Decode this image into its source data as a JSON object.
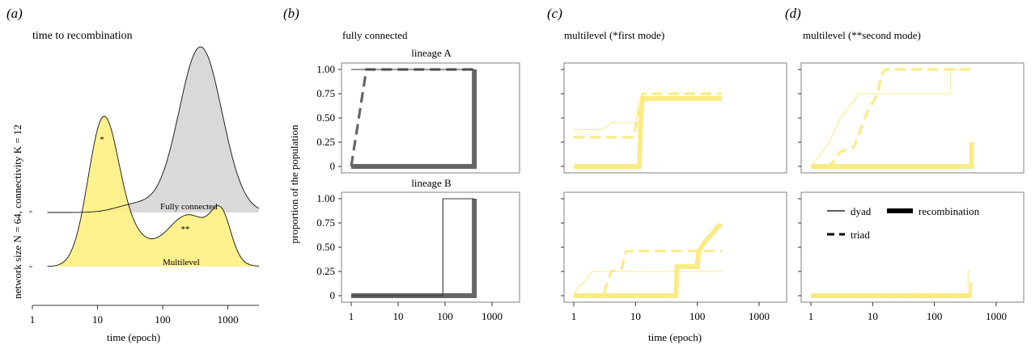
{
  "panels": {
    "a": {
      "letter": "(a)",
      "title": "time to recombination",
      "ylabel": "network size N = 64, connectivity K = 12",
      "xlabel": "time (epoch)",
      "xticks": [
        "1",
        "10",
        "100",
        "1000"
      ],
      "annotations": {
        "first_mode": "*",
        "second_mode": "**",
        "fully_connected": "Fully connected",
        "multilevel": "Multilevel"
      }
    },
    "b": {
      "letter": "(b)",
      "title": "fully connected",
      "row1_label": "lineage A",
      "row2_label": "lineage B"
    },
    "c": {
      "letter": "(c)",
      "title": "multilevel (*first mode)"
    },
    "d": {
      "letter": "(d)",
      "title": "multilevel (**second mode)"
    }
  },
  "shared": {
    "ylabel": "proportion of the population",
    "xlabel": "time (epoch)",
    "yticks": [
      "0",
      "0.25",
      "0.50",
      "0.75",
      "1.00"
    ],
    "xticks": [
      "1",
      "10",
      "100",
      "1000"
    ]
  },
  "legend": {
    "dyad": "dyad",
    "triad": "triad",
    "recombination": "recombination"
  },
  "colors": {
    "fully_connected": "#666666",
    "multilevel": "#fbe97a",
    "density_gray": "#d9d9d9",
    "density_yellow": "#fff07a"
  },
  "chart_data": [
    {
      "panel": "a",
      "type": "area",
      "x_scale": "log",
      "xlim": [
        1,
        3000
      ],
      "series": [
        {
          "name": "Fully connected",
          "mode_epoch": 380,
          "note": "gray density, single mode"
        },
        {
          "name": "Multilevel",
          "first_mode_epoch": 12,
          "second_mode_epoch": 250,
          "note": "yellow density, bimodal"
        }
      ]
    },
    {
      "panel": "b",
      "type": "line",
      "x_scale": "log",
      "xlim": [
        1,
        1000
      ],
      "ylim": [
        0,
        1
      ],
      "rows": [
        {
          "name": "lineage A",
          "dyad": [
            [
              1,
              1.0
            ],
            [
              420,
              1.0
            ]
          ],
          "triad": [
            [
              1,
              0
            ],
            [
              2.1,
              1.0
            ],
            [
              420,
              1.0
            ]
          ],
          "recombination": [
            [
              1,
              0
            ],
            [
              420,
              0
            ],
            [
              420,
              1.0
            ]
          ]
        },
        {
          "name": "lineage B",
          "dyad": [
            [
              1,
              0
            ],
            [
              90,
              0
            ],
            [
              90,
              1.0
            ],
            [
              420,
              1.0
            ]
          ],
          "triad": [
            [
              1,
              0
            ],
            [
              420,
              0
            ],
            [
              420,
              1.0
            ]
          ],
          "recombination": [
            [
              1,
              0
            ],
            [
              420,
              0
            ],
            [
              420,
              1.0
            ]
          ]
        }
      ]
    },
    {
      "panel": "c",
      "type": "line",
      "x_scale": "log",
      "xlim": [
        1,
        1000
      ],
      "ylim": [
        0,
        1
      ],
      "rows": [
        {
          "dyad": [
            [
              1,
              0.38
            ],
            [
              3,
              0.38
            ],
            [
              4,
              0.45
            ],
            [
              10,
              0.45
            ],
            [
              11,
              0.65
            ],
            [
              13,
              0.72
            ],
            [
              250,
              0.72
            ]
          ],
          "triad": [
            [
              1,
              0.3
            ],
            [
              7,
              0.3
            ],
            [
              9,
              0.3
            ],
            [
              11,
              0.5
            ],
            [
              13,
              0.75
            ],
            [
              250,
              0.75
            ]
          ],
          "recombination": [
            [
              1,
              0
            ],
            [
              11.5,
              0
            ],
            [
              12,
              0.4
            ],
            [
              13,
              0.7
            ],
            [
              20,
              0.7
            ],
            [
              250,
              0.7
            ]
          ]
        },
        {
          "dyad": [
            [
              1,
              0.02
            ],
            [
              2,
              0.25
            ],
            [
              250,
              0.25
            ]
          ],
          "triad": [
            [
              1,
              0
            ],
            [
              3,
              0
            ],
            [
              4,
              0.25
            ],
            [
              6,
              0.28
            ],
            [
              7,
              0.46
            ],
            [
              250,
              0.46
            ]
          ],
          "recombination": [
            [
              1,
              0
            ],
            [
              45,
              0
            ],
            [
              47,
              0.3
            ],
            [
              100,
              0.3
            ],
            [
              105,
              0.45
            ],
            [
              130,
              0.55
            ],
            [
              180,
              0.65
            ],
            [
              220,
              0.72
            ],
            [
              250,
              0.72
            ]
          ]
        }
      ]
    },
    {
      "panel": "d",
      "type": "line",
      "x_scale": "log",
      "xlim": [
        1,
        1000
      ],
      "ylim": [
        0,
        1
      ],
      "rows": [
        {
          "dyad": [
            [
              1,
              0
            ],
            [
              2,
              0.25
            ],
            [
              3,
              0.5
            ],
            [
              4,
              0.6
            ],
            [
              6,
              0.75
            ],
            [
              180,
              0.75
            ],
            [
              180,
              1.0
            ],
            [
              380,
              1.0
            ]
          ],
          "triad": [
            [
              1,
              0
            ],
            [
              2,
              0
            ],
            [
              3,
              0.15
            ],
            [
              5,
              0.2
            ],
            [
              8,
              0.55
            ],
            [
              12,
              0.75
            ],
            [
              14,
              0.95
            ],
            [
              16,
              1.0
            ],
            [
              380,
              1.0
            ]
          ],
          "recombination": [
            [
              1,
              0
            ],
            [
              400,
              0
            ],
            [
              400,
              0.25
            ]
          ]
        },
        {
          "dyad": [
            [
              1,
              0
            ],
            [
              350,
              0
            ],
            [
              350,
              0.25
            ],
            [
              380,
              0.25
            ]
          ],
          "triad": [
            [
              1,
              0
            ],
            [
              380,
              0
            ],
            [
              390,
              0.12
            ],
            [
              400,
              0.15
            ]
          ],
          "recombination": [
            [
              1,
              0
            ],
            [
              400,
              0
            ]
          ]
        }
      ]
    }
  ]
}
